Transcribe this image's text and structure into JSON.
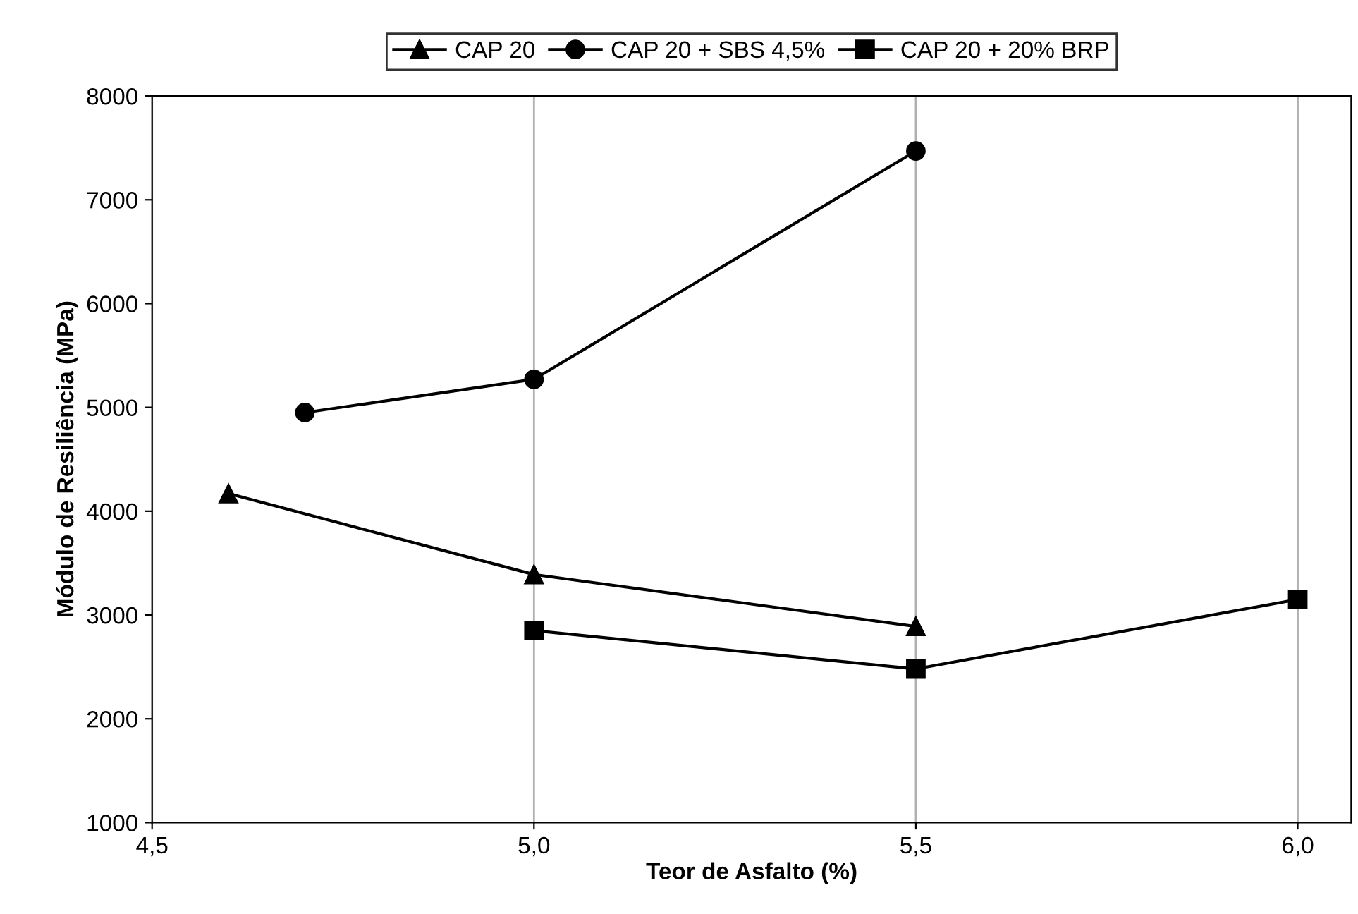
{
  "chart_data": {
    "type": "line",
    "xlabel": "Teor de Asfalto (%)",
    "ylabel": "Módulo de Resiliência (MPa)",
    "xlim": [
      4.5,
      6.07
    ],
    "xticks": [
      {
        "value": 4.5,
        "label": "4,5"
      },
      {
        "value": 5.0,
        "label": "5,0"
      },
      {
        "value": 5.5,
        "label": "5,5"
      },
      {
        "value": 6.0,
        "label": "6,0"
      }
    ],
    "ylim": [
      1000,
      8000
    ],
    "yticks": [
      1000,
      2000,
      3000,
      4000,
      5000,
      6000,
      7000,
      8000
    ],
    "grid": "x",
    "legend": "top",
    "line_style": "solid",
    "series": [
      {
        "name": "CAP 20",
        "color": "#000000",
        "marker": "triangle",
        "x": [
          4.6,
          5.0,
          5.5
        ],
        "values": [
          4170,
          3390,
          2890
        ]
      },
      {
        "name": "CAP 20 + SBS 4,5%",
        "color": "#000000",
        "marker": "circle",
        "x": [
          4.7,
          5.0,
          5.5
        ],
        "values": [
          4950,
          5270,
          7470
        ]
      },
      {
        "name": "CAP 20 + 20% BRP",
        "color": "#000000",
        "marker": "square",
        "x": [
          5.0,
          5.5,
          6.0
        ],
        "values": [
          2850,
          2480,
          3150
        ]
      }
    ]
  }
}
